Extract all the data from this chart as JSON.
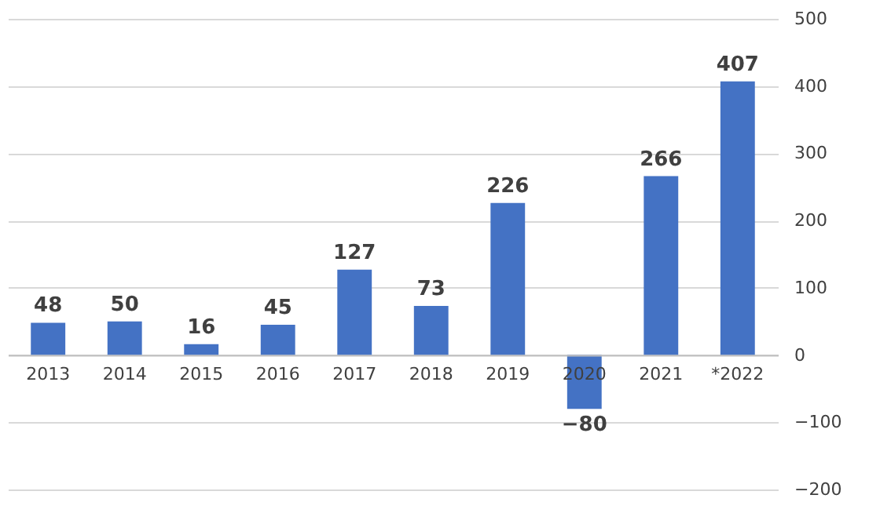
{
  "chart_data": {
    "type": "bar",
    "categories": [
      "2013",
      "2014",
      "2015",
      "2016",
      "2017",
      "2018",
      "2019",
      "2020",
      "2021",
      "*2022"
    ],
    "values": [
      48,
      50,
      16,
      45,
      127,
      73,
      226,
      -80,
      266,
      407
    ],
    "color": "#4472c4",
    "ylim": [
      -200,
      500
    ],
    "yticks": [
      -200,
      -100,
      0,
      100,
      200,
      300,
      400,
      500
    ],
    "grid": "y",
    "data_labels": true
  }
}
